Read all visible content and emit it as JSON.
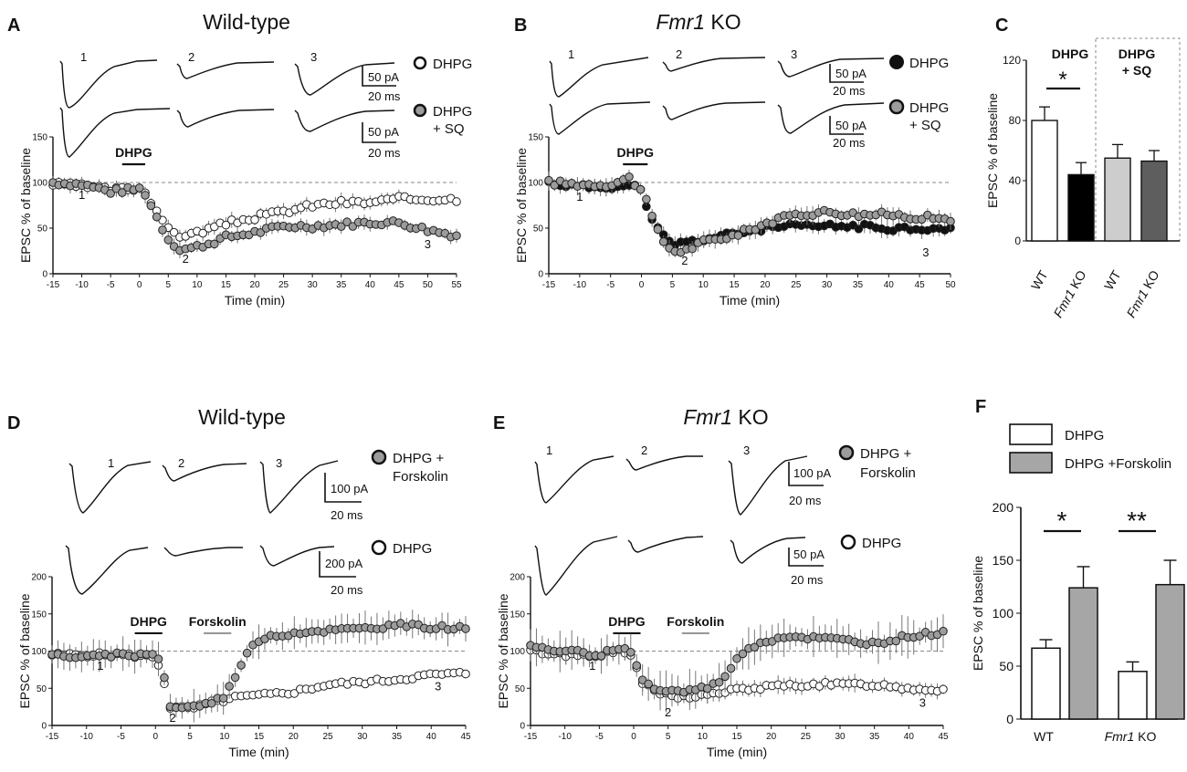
{
  "chart_data": [
    {
      "panel": "A",
      "type": "scatter",
      "title": "Wild-type",
      "xlabel": "Time (min)",
      "ylabel": "EPSC % of baseline",
      "xlim": [
        -15,
        55
      ],
      "ylim": [
        0,
        150
      ],
      "xticks": [
        "-15",
        "-10",
        "-5",
        "0",
        "5",
        "10",
        "15",
        "20",
        "25",
        "30",
        "35",
        "40",
        "45",
        "50",
        "55"
      ],
      "yticks": [
        "0",
        "50",
        "100",
        "150"
      ],
      "drug_bars": [
        {
          "label": "DHPG",
          "start": -3,
          "end": 1,
          "color": "#111111"
        }
      ],
      "baseline": 100,
      "point_labels": [
        {
          "text": "1",
          "x": -10,
          "y": 82
        },
        {
          "text": "2",
          "x": 8,
          "y": 12
        },
        {
          "text": "3",
          "x": 50,
          "y": 28
        }
      ],
      "series": [
        {
          "name": "DHPG",
          "fill": "#ffffff",
          "err": 7,
          "seed": 3,
          "anchors": [
            [
              -15,
              98
            ],
            [
              -10,
              96
            ],
            [
              -5,
              92
            ],
            [
              0,
              94
            ],
            [
              1,
              90
            ],
            [
              3,
              70
            ],
            [
              5,
              48
            ],
            [
              7,
              42
            ],
            [
              10,
              45
            ],
            [
              15,
              55
            ],
            [
              20,
              62
            ],
            [
              25,
              68
            ],
            [
              30,
              75
            ],
            [
              35,
              78
            ],
            [
              40,
              78
            ],
            [
              45,
              82
            ],
            [
              50,
              82
            ],
            [
              55,
              82
            ]
          ]
        },
        {
          "name": "DHPG + SQ",
          "fill": "#9c9c9c",
          "err": 7,
          "seed": 7,
          "anchors": [
            [
              -15,
              100
            ],
            [
              -10,
              98
            ],
            [
              -5,
              90
            ],
            [
              0,
              93
            ],
            [
              1,
              88
            ],
            [
              3,
              62
            ],
            [
              5,
              38
            ],
            [
              7,
              27
            ],
            [
              9,
              28
            ],
            [
              12,
              33
            ],
            [
              15,
              40
            ],
            [
              20,
              45
            ],
            [
              25,
              52
            ],
            [
              30,
              52
            ],
            [
              35,
              54
            ],
            [
              40,
              56
            ],
            [
              45,
              56
            ],
            [
              50,
              48
            ],
            [
              55,
              42
            ]
          ]
        }
      ]
    },
    {
      "panel": "B",
      "type": "scatter",
      "title": "KO",
      "title_gene": "Fmr1",
      "xlabel": "Time (min)",
      "ylabel": "EPSC % of baseline",
      "xlim": [
        -15,
        50
      ],
      "ylim": [
        0,
        150
      ],
      "xticks": [
        "-15",
        "-10",
        "-5",
        "0",
        "5",
        "10",
        "15",
        "20",
        "25",
        "30",
        "35",
        "40",
        "45",
        "50"
      ],
      "yticks": [
        "0",
        "50",
        "100",
        "150"
      ],
      "drug_bars": [
        {
          "label": "DHPG",
          "start": -3,
          "end": 1,
          "color": "#111111"
        }
      ],
      "baseline": 100,
      "point_labels": [
        {
          "text": "1",
          "x": -10,
          "y": 80
        },
        {
          "text": "2",
          "x": 7,
          "y": 10
        },
        {
          "text": "3",
          "x": 46,
          "y": 19
        }
      ],
      "series": [
        {
          "name": "DHPG",
          "fill": "#111111",
          "err": 8,
          "seed": 11,
          "anchors": [
            [
              -15,
              100
            ],
            [
              -10,
              95
            ],
            [
              -5,
              96
            ],
            [
              0,
              95
            ],
            [
              1,
              65
            ],
            [
              3,
              45
            ],
            [
              5,
              32
            ],
            [
              8,
              35
            ],
            [
              12,
              40
            ],
            [
              16,
              45
            ],
            [
              20,
              50
            ],
            [
              25,
              52
            ],
            [
              30,
              52
            ],
            [
              35,
              52
            ],
            [
              40,
              50
            ],
            [
              45,
              50
            ],
            [
              50,
              48
            ]
          ]
        },
        {
          "name": "DHPG + SQ",
          "fill": "#9c9c9c",
          "err": 8,
          "seed": 17,
          "anchors": [
            [
              -15,
              100
            ],
            [
              -10,
              98
            ],
            [
              -5,
              98
            ],
            [
              -2,
              105
            ],
            [
              0,
              92
            ],
            [
              1,
              75
            ],
            [
              3,
              40
            ],
            [
              5,
              25
            ],
            [
              7,
              25
            ],
            [
              10,
              35
            ],
            [
              15,
              42
            ],
            [
              20,
              55
            ],
            [
              25,
              65
            ],
            [
              30,
              68
            ],
            [
              35,
              65
            ],
            [
              40,
              65
            ],
            [
              45,
              62
            ],
            [
              50,
              60
            ]
          ]
        }
      ]
    },
    {
      "panel": "C",
      "type": "bar",
      "xlabel": "",
      "ylabel": "EPSC % of baseline",
      "ylim": [
        0,
        120
      ],
      "yticks": [
        "0",
        "40",
        "80",
        "120"
      ],
      "categories": [
        "WT",
        "Fmr1 KO",
        "WT",
        "Fmr1 KO"
      ],
      "values": [
        80,
        44,
        55,
        53
      ],
      "errors": [
        9,
        8,
        9,
        7
      ],
      "colors": [
        "#ffffff",
        "#000000",
        "#cdcdcd",
        "#5e5e5e"
      ],
      "groups": [
        {
          "label": "DHPG",
          "significance": "*"
        },
        {
          "label": "DHPG + SQ",
          "significance": ""
        }
      ]
    },
    {
      "panel": "D",
      "type": "scatter",
      "title": "Wild-type",
      "xlabel": "Time (min)",
      "ylabel": "EPSC % of baseline",
      "xlim": [
        -15,
        45
      ],
      "ylim": [
        0,
        200
      ],
      "xticks": [
        "-15",
        "-10",
        "-5",
        "0",
        "5",
        "10",
        "15",
        "20",
        "25",
        "30",
        "35",
        "40",
        "45"
      ],
      "yticks": [
        "0",
        "50",
        "100",
        "150",
        "200"
      ],
      "drug_bars": [
        {
          "label": "DHPG",
          "start": -3,
          "end": 1,
          "color": "#111111"
        },
        {
          "label": "Forskolin",
          "start": 7,
          "end": 11,
          "color": "#999999"
        }
      ],
      "baseline": 100,
      "point_labels": [
        {
          "text": "1",
          "x": -8,
          "y": 75
        },
        {
          "text": "2",
          "x": 2.5,
          "y": 5
        },
        {
          "text": "3",
          "x": 41,
          "y": 47
        }
      ],
      "series": [
        {
          "name": "DHPG",
          "fill": "#ffffff",
          "err": 0,
          "seed": 5,
          "anchors": [
            [
              -15,
              95
            ],
            [
              -10,
              95
            ],
            [
              -5,
              95
            ],
            [
              0,
              92
            ],
            [
              1,
              70
            ],
            [
              2,
              25
            ],
            [
              5,
              22
            ],
            [
              8,
              30
            ],
            [
              12,
              38
            ],
            [
              15,
              40
            ],
            [
              20,
              45
            ],
            [
              25,
              55
            ],
            [
              30,
              58
            ],
            [
              35,
              62
            ],
            [
              40,
              68
            ],
            [
              45,
              70
            ]
          ]
        },
        {
          "name": "DHPG + Forskolin",
          "fill": "#9c9c9c",
          "err": 18,
          "seed": 9,
          "anchors": [
            [
              -15,
              95
            ],
            [
              -10,
              92
            ],
            [
              -5,
              95
            ],
            [
              -1,
              95
            ],
            [
              0,
              100
            ],
            [
              1,
              80
            ],
            [
              2,
              25
            ],
            [
              5,
              25
            ],
            [
              8,
              30
            ],
            [
              10,
              40
            ],
            [
              11,
              55
            ],
            [
              12,
              75
            ],
            [
              13,
              95
            ],
            [
              15,
              115
            ],
            [
              20,
              125
            ],
            [
              25,
              128
            ],
            [
              30,
              130
            ],
            [
              35,
              135
            ],
            [
              40,
              132
            ],
            [
              45,
              132
            ]
          ]
        }
      ]
    },
    {
      "panel": "E",
      "type": "scatter",
      "title": "KO",
      "title_gene": "Fmr1",
      "xlabel": "Time (min)",
      "ylabel": "EPSC % of baseline",
      "xlim": [
        -15,
        45
      ],
      "ylim": [
        0,
        200
      ],
      "xticks": [
        "-15",
        "-10",
        "-5",
        "0",
        "5",
        "10",
        "15",
        "20",
        "25",
        "30",
        "35",
        "40",
        "45"
      ],
      "yticks": [
        "0",
        "50",
        "100",
        "150",
        "200"
      ],
      "drug_bars": [
        {
          "label": "DHPG",
          "start": -3,
          "end": 1,
          "color": "#111111"
        },
        {
          "label": "Forskolin",
          "start": 7,
          "end": 11,
          "color": "#999999"
        }
      ],
      "baseline": 100,
      "point_labels": [
        {
          "text": "1",
          "x": -6,
          "y": 75
        },
        {
          "text": "2",
          "x": 5,
          "y": 12
        },
        {
          "text": "3",
          "x": 42,
          "y": 25
        }
      ],
      "series": [
        {
          "name": "DHPG",
          "fill": "#ffffff",
          "err": 10,
          "seed": 13,
          "anchors": [
            [
              -15,
              100
            ],
            [
              -10,
              95
            ],
            [
              -5,
              95
            ],
            [
              -2,
              100
            ],
            [
              0,
              92
            ],
            [
              1,
              60
            ],
            [
              3,
              45
            ],
            [
              6,
              38
            ],
            [
              10,
              40
            ],
            [
              15,
              48
            ],
            [
              20,
              52
            ],
            [
              25,
              55
            ],
            [
              30,
              55
            ],
            [
              35,
              55
            ],
            [
              40,
              50
            ],
            [
              45,
              48
            ]
          ]
        },
        {
          "name": "DHPG + Forskolin",
          "fill": "#9c9c9c",
          "err": 22,
          "seed": 19,
          "anchors": [
            [
              -15,
              105
            ],
            [
              -10,
              100
            ],
            [
              -5,
              95
            ],
            [
              -2,
              105
            ],
            [
              0,
              95
            ],
            [
              1,
              65
            ],
            [
              3,
              48
            ],
            [
              7,
              45
            ],
            [
              10,
              50
            ],
            [
              12,
              55
            ],
            [
              14,
              75
            ],
            [
              16,
              100
            ],
            [
              18,
              110
            ],
            [
              22,
              120
            ],
            [
              30,
              115
            ],
            [
              35,
              110
            ],
            [
              40,
              120
            ],
            [
              45,
              125
            ]
          ]
        }
      ]
    },
    {
      "panel": "F",
      "type": "bar",
      "xlabel": "",
      "ylabel": "EPSC % of baseline",
      "ylim": [
        0,
        200
      ],
      "yticks": [
        "0",
        "50",
        "100",
        "150",
        "200"
      ],
      "categories": [
        "WT",
        "Fmr1 KO"
      ],
      "series": [
        {
          "name": "DHPG",
          "values": [
            67,
            45
          ],
          "errors": [
            8,
            9
          ],
          "color": "#ffffff"
        },
        {
          "name": "DHPG +Forskolin",
          "values": [
            124,
            127
          ],
          "errors": [
            20,
            23
          ],
          "color": "#a6a6a6"
        }
      ],
      "significance": [
        "*",
        "**"
      ]
    }
  ],
  "panel_labels": {
    "A": "A",
    "B": "B",
    "C": "C",
    "D": "D",
    "E": "E",
    "F": "F"
  },
  "titles": {
    "a": "Wild-type",
    "b_gene": "Fmr1",
    "b_rest": "KO",
    "d": "Wild-type",
    "e_gene": "Fmr1",
    "e_rest": "KO"
  },
  "trace_numbers": {
    "one": "1",
    "two": "2",
    "three": "3"
  },
  "legends": {
    "a1": "DHPG",
    "a2a": "DHPG",
    "a2b": "+ SQ",
    "b1": "DHPG",
    "b2a": "DHPG",
    "b2b": "+ SQ",
    "d1a": "DHPG +",
    "d1b": "Forskolin",
    "d2": "DHPG",
    "e1a": "DHPG +",
    "e1b": "Forskolin",
    "e2": "DHPG",
    "f1": "DHPG",
    "f2": "DHPG +Forskolin"
  },
  "scalebars": {
    "a_cur": "50 pA",
    "a_time": "20 ms",
    "b_cur": "50 pA",
    "b_time": "20 ms",
    "d1_cur": "100 pA",
    "d1_time": "20 ms",
    "d2_cur": "200 pA",
    "d2_time": "20 ms",
    "e1_cur": "100 pA",
    "e1_time": "20 ms",
    "e2_cur": "50 pA",
    "e2_time": "20 ms"
  },
  "c_labels": {
    "dhpg": "DHPG",
    "sq1": "DHPG",
    "sq2": "+ SQ",
    "star": "*",
    "wt": "WT",
    "ko_gene": "Fmr1",
    "ko_rest": "KO"
  },
  "f_labels": {
    "star1": "*",
    "star2": "**",
    "wt": "WT",
    "ko_gene": "Fmr1",
    "ko_rest": "KO"
  }
}
